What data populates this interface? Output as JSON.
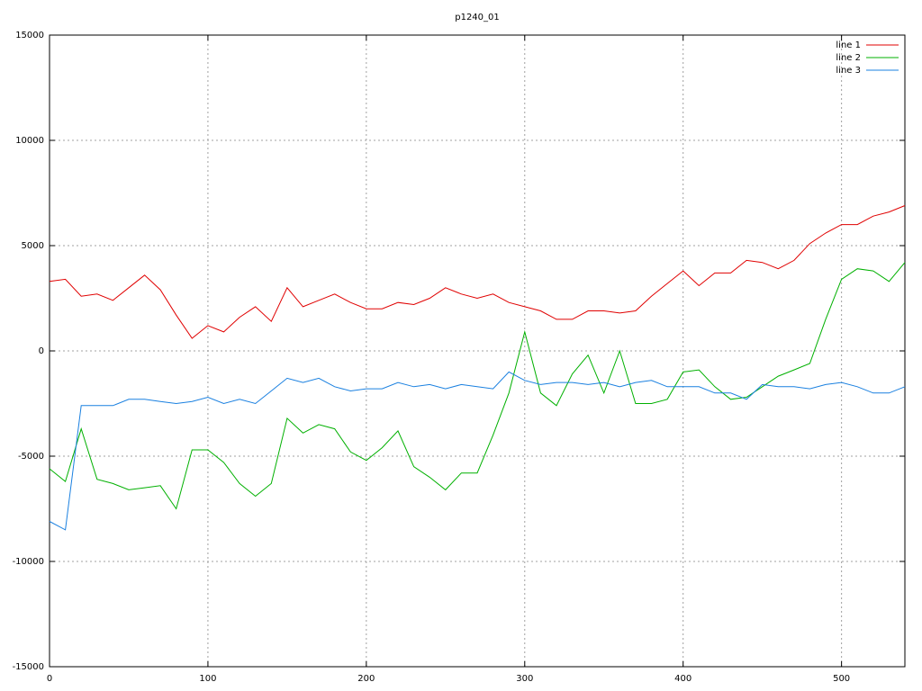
{
  "chart_data": {
    "type": "line",
    "title": "p1240_01",
    "x": [
      0,
      10,
      20,
      30,
      40,
      50,
      60,
      70,
      80,
      90,
      100,
      110,
      120,
      130,
      140,
      150,
      160,
      170,
      180,
      190,
      200,
      210,
      220,
      230,
      240,
      250,
      260,
      270,
      280,
      290,
      300,
      310,
      320,
      330,
      340,
      350,
      360,
      370,
      380,
      390,
      400,
      410,
      420,
      430,
      440,
      450,
      460,
      470,
      480,
      490,
      500,
      510,
      520,
      530,
      540
    ],
    "series": [
      {
        "name": "line 1",
        "color": "#e00000",
        "values": [
          3300,
          3400,
          2600,
          2700,
          2400,
          3000,
          3600,
          2900,
          1700,
          600,
          1200,
          900,
          1600,
          2100,
          1400,
          3000,
          2100,
          2400,
          2700,
          2300,
          2000,
          2000,
          2300,
          2200,
          2500,
          3000,
          2700,
          2500,
          2700,
          2300,
          2100,
          1900,
          1500,
          1500,
          1900,
          1900,
          1800,
          1900,
          2600,
          3200,
          3800,
          3100,
          3700,
          3700,
          4300,
          4200,
          3900,
          4300,
          5100,
          5600,
          6000,
          6000,
          6400,
          6600,
          6900
        ]
      },
      {
        "name": "line 2",
        "color": "#00b000",
        "values": [
          -5600,
          -6200,
          -3700,
          -6100,
          -6300,
          -6600,
          -6500,
          -6400,
          -7500,
          -4700,
          -4700,
          -5300,
          -6300,
          -6900,
          -6300,
          -3200,
          -3900,
          -3500,
          -3700,
          -4800,
          -5200,
          -4600,
          -3800,
          -5500,
          -6000,
          -6600,
          -5800,
          -5800,
          -4000,
          -2000,
          900,
          -2000,
          -2600,
          -1100,
          -200,
          -2000,
          0,
          -2500,
          -2500,
          -2300,
          -1000,
          -900,
          -1700,
          -2300,
          -2200,
          -1700,
          -1200,
          -900,
          -600,
          1500,
          3400,
          3900,
          3800,
          3300,
          4200
        ]
      },
      {
        "name": "line 3",
        "color": "#1a80e0",
        "values": [
          -8100,
          -8500,
          -2600,
          -2600,
          -2600,
          -2300,
          -2300,
          -2400,
          -2500,
          -2400,
          -2200,
          -2500,
          -2300,
          -2500,
          -1900,
          -1300,
          -1500,
          -1300,
          -1700,
          -1900,
          -1800,
          -1800,
          -1500,
          -1700,
          -1600,
          -1800,
          -1600,
          -1700,
          -1800,
          -1000,
          -1400,
          -1600,
          -1500,
          -1500,
          -1600,
          -1500,
          -1700,
          -1500,
          -1400,
          -1700,
          -1700,
          -1700,
          -2000,
          -2000,
          -2300,
          -1600,
          -1700,
          -1700,
          -1800,
          -1600,
          -1500,
          -1700,
          -2000,
          -2000,
          -1700
        ]
      }
    ],
    "xlim": [
      0,
      540
    ],
    "xticks": [
      0,
      100,
      200,
      300,
      400,
      500
    ],
    "ylim": [
      -15000,
      15000
    ],
    "yticks": [
      -15000,
      -10000,
      -5000,
      0,
      5000,
      10000,
      15000
    ],
    "grid": true,
    "legend": "top-right"
  }
}
